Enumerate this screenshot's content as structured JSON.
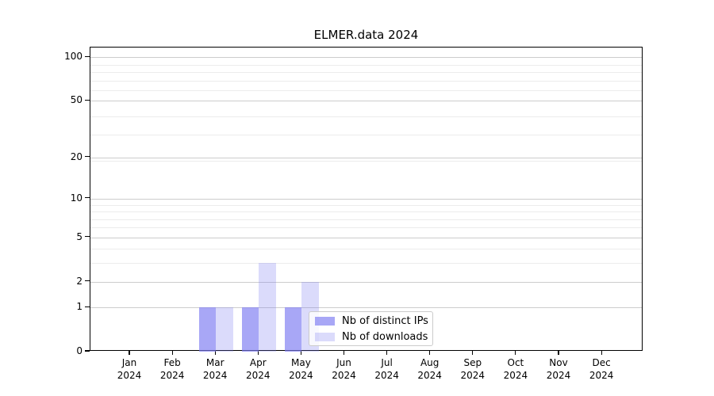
{
  "chart_data": {
    "type": "bar",
    "title": "ELMER.data 2024",
    "categories": [
      "Jan 2024",
      "Feb 2024",
      "Mar 2024",
      "Apr 2024",
      "May 2024",
      "Jun 2024",
      "Jul 2024",
      "Aug 2024",
      "Sep 2024",
      "Oct 2024",
      "Nov 2024",
      "Dec 2024"
    ],
    "series": [
      {
        "name": "Nb of distinct IPs",
        "color": "rgba(123,122,242,0.66)",
        "values": [
          0,
          0,
          1,
          1,
          1,
          0,
          0,
          0,
          0,
          0,
          0,
          0
        ]
      },
      {
        "name": "Nb of downloads",
        "color": "rgba(123,122,242,0.27)",
        "values": [
          0,
          0,
          1,
          3,
          2,
          0,
          0,
          0,
          0,
          0,
          0,
          0
        ]
      }
    ],
    "xlabel": "",
    "ylabel": "",
    "yscale": "log1p",
    "y_ticks": [
      0,
      1,
      2,
      5,
      10,
      20,
      50,
      100
    ],
    "ylim": [
      0,
      117
    ],
    "grid": "on",
    "legend_position": "inside lower-center"
  },
  "colors": {
    "axis": "#000000",
    "grid_major": "#cccccc",
    "grid_minor": "#ececec",
    "background": "#ffffff",
    "bar_distinct_ips": "rgba(123,122,242,0.66)",
    "bar_downloads": "rgba(123,122,242,0.27)"
  }
}
